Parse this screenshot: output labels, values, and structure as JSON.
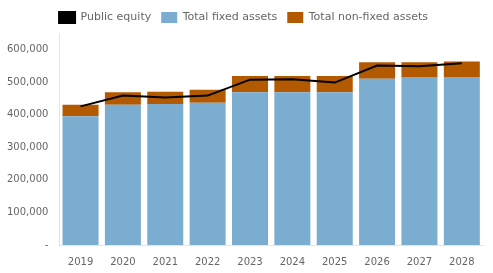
{
  "chart_data": {
    "type": "bar",
    "stacked": true,
    "categories": [
      "2019",
      "2020",
      "2021",
      "2022",
      "2023",
      "2024",
      "2025",
      "2026",
      "2027",
      "2028"
    ],
    "series": [
      {
        "name": "Total fixed assets",
        "type": "bar",
        "color": "#7aadcf",
        "values": [
          395000,
          430000,
          432000,
          436000,
          468000,
          468000,
          468000,
          510000,
          515000,
          515000
        ]
      },
      {
        "name": "Total non-fixed assets",
        "type": "bar",
        "color": "#b35900",
        "values": [
          35000,
          38000,
          38000,
          40000,
          50000,
          50000,
          50000,
          50000,
          45000,
          48000
        ]
      },
      {
        "name": "Public equity",
        "type": "line",
        "color": "#000000",
        "values": [
          425000,
          458000,
          452000,
          458000,
          507000,
          508000,
          498000,
          550000,
          548000,
          557000
        ]
      }
    ],
    "ylim": [
      0,
      650000
    ],
    "yticks": [
      {
        "value": 0,
        "label": "-"
      },
      {
        "value": 100000,
        "label": "100,000"
      },
      {
        "value": 200000,
        "label": "200,000"
      },
      {
        "value": 300000,
        "label": "300,000"
      },
      {
        "value": 400000,
        "label": "400,000"
      },
      {
        "value": 500000,
        "label": "500,000"
      },
      {
        "value": 600000,
        "label": "600,000"
      }
    ],
    "grid": false,
    "legend": "top"
  }
}
